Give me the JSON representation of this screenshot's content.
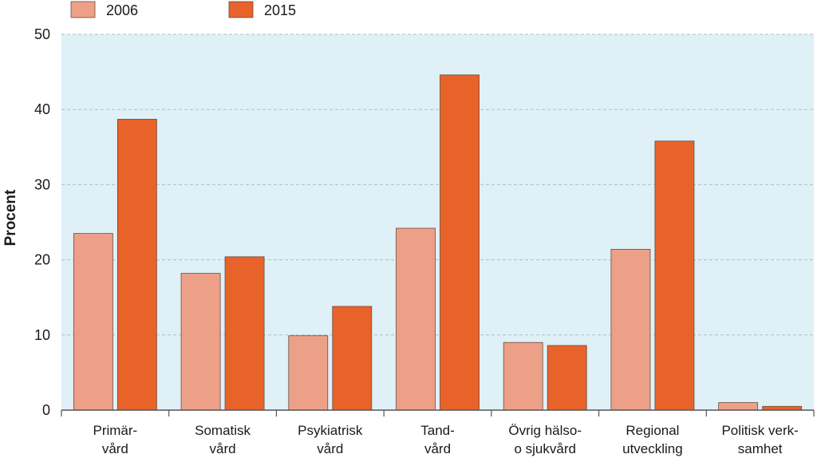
{
  "chart_data": {
    "type": "bar",
    "categories": [
      [
        "Primär-",
        "vård"
      ],
      [
        "Somatisk",
        "vård"
      ],
      [
        "Psykiatrisk",
        "vård"
      ],
      [
        "Tand-",
        "vård"
      ],
      [
        "Övrig hälso-",
        "o sjukvård"
      ],
      [
        "Regional",
        "utveckling"
      ],
      [
        "Politisk verk-",
        "samhet"
      ]
    ],
    "series": [
      {
        "name": "2006",
        "values": [
          23.5,
          18.2,
          9.9,
          24.2,
          9.0,
          21.4,
          1.0
        ],
        "color": "#eda088"
      },
      {
        "name": "2015",
        "values": [
          38.7,
          20.4,
          13.8,
          44.6,
          8.6,
          35.8,
          0.5
        ],
        "color": "#e8632a"
      }
    ],
    "ylabel": "Procent",
    "xlabel": "",
    "title": "",
    "ylim": [
      0,
      50
    ],
    "yticks": [
      0,
      10,
      20,
      30,
      40,
      50
    ],
    "grid": true,
    "legend_position": "top-left",
    "plot_background": "#dff0f7",
    "grid_color": "#a9bfc8"
  }
}
